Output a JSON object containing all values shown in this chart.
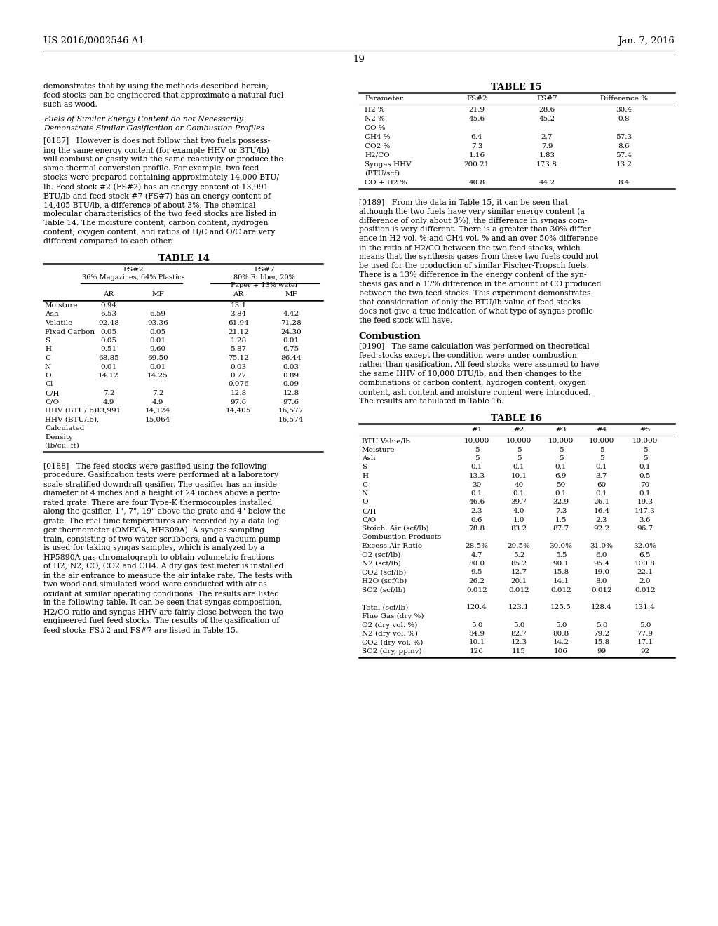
{
  "header_left": "US 2016/0002546 A1",
  "header_right": "Jan. 7, 2016",
  "page_number": "19",
  "bg": "#ffffff",
  "left_para_top": [
    "demonstrates that by using the methods described herein,",
    "feed stocks can be engineered that approximate a natural fuel",
    "such as wood."
  ],
  "italic_header1": "Fuels of Similar Energy Content do not Necessarily",
  "italic_header2": "Demonstrate Similar Gasification or Combustion Profiles",
  "para187": [
    "[0187]   However is does not follow that two fuels possess-",
    "ing the same energy content (for example HHV or BTU/lb)",
    "will combust or gasify with the same reactivity or produce the",
    "same thermal conversion profile. For example, two feed",
    "stocks were prepared containing approximately 14,000 BTU/",
    "lb. Feed stock #2 (FS#2) has an energy content of 13,991",
    "BTU/lb and feed stock #7 (FS#7) has an energy content of",
    "14,405 BTU/lb, a difference of about 3%. The chemical",
    "molecular characteristics of the two feed stocks are listed in",
    "Table 14. The moisture content, carbon content, hydrogen",
    "content, oxygen content, and ratios of H/C and O/C are very",
    "different compared to each other."
  ],
  "para188": [
    "[0188]   The feed stocks were gasified using the following",
    "procedure. Gasification tests were performed at a laboratory",
    "scale stratified downdraft gasifier. The gasifier has an inside",
    "diameter of 4 inches and a height of 24 inches above a perfo-",
    "rated grate. There are four Type-K thermocouples installed",
    "along the gasifier, 1\", 7\", 19\" above the grate and 4\" below the",
    "grate. The real-time temperatures are recorded by a data log-",
    "ger thermometer (OMEGA, HH309A). A syngas sampling",
    "train, consisting of two water scrubbers, and a vacuum pump",
    "is used for taking syngas samples, which is analyzed by a",
    "HP5890A gas chromatograph to obtain volumetric fractions",
    "of H2, N2, CO, CO2 and CH4. A dry gas test meter is installed",
    "in the air entrance to measure the air intake rate. The tests with",
    "two wood and simulated wood were conducted with air as",
    "oxidant at similar operating conditions. The results are listed",
    "in the following table. It can be seen that syngas composition,",
    "H2/CO ratio and syngas HHV are fairly close between the two",
    "engineered fuel feed stocks. The results of the gasification of",
    "feed stocks FS#2 and FS#7 are listed in Table 15."
  ],
  "para189": [
    "[0189]   From the data in Table 15, it can be seen that",
    "although the two fuels have very similar energy content (a",
    "difference of only about 3%), the difference in syngas com-",
    "position is very different. There is a greater than 30% differ-",
    "ence in H2 vol. % and CH4 vol. % and an over 50% difference",
    "in the ratio of H2/CO between the two feed stocks, which",
    "means that the synthesis gases from these two fuels could not",
    "be used for the production of similar Fischer-Tropsch fuels.",
    "There is a 13% difference in the energy content of the syn-",
    "thesis gas and a 17% difference in the amount of CO produced",
    "between the two feed stocks. This experiment demonstrates",
    "that consideration of only the BTU/lb value of feed stocks",
    "does not give a true indication of what type of syngas profile",
    "the feed stock will have."
  ],
  "para190": [
    "[0190]   The same calculation was performed on theoretical",
    "feed stocks except the condition were under combustion",
    "rather than gasification. All feed stocks were assumed to have",
    "the same HHV of 10,000 BTU/lb, and then changes to the",
    "combinations of carbon content, hydrogen content, oxygen",
    "content, ash content and moisture content were introduced.",
    "The results are tabulated in Table 16."
  ],
  "t14_rows": [
    [
      "Moisture",
      "0.94",
      "",
      "13.1",
      ""
    ],
    [
      "Ash",
      "6.53",
      "6.59",
      "3.84",
      "4.42"
    ],
    [
      "Volatile",
      "92.48",
      "93.36",
      "61.94",
      "71.28"
    ],
    [
      "Fixed Carbon",
      "0.05",
      "0.05",
      "21.12",
      "24.30"
    ],
    [
      "S",
      "0.05",
      "0.01",
      "1.28",
      "0.01"
    ],
    [
      "H",
      "9.51",
      "9.60",
      "5.87",
      "6.75"
    ],
    [
      "C",
      "68.85",
      "69.50",
      "75.12",
      "86.44"
    ],
    [
      "N",
      "0.01",
      "0.01",
      "0.03",
      "0.03"
    ],
    [
      "O",
      "14.12",
      "14.25",
      "0.77",
      "0.89"
    ],
    [
      "Cl",
      "",
      "",
      "0.076",
      "0.09"
    ],
    [
      "C/H",
      "7.2",
      "7.2",
      "12.8",
      "12.8"
    ],
    [
      "C/O",
      "4.9",
      "4.9",
      "97.6",
      "97.6"
    ],
    [
      "HHV (BTU/lb)",
      "13,991",
      "14,124",
      "14,405",
      "16,577"
    ],
    [
      "HHV (BTU/lb),",
      "",
      "15,064",
      "",
      "16,574"
    ],
    [
      "Calculated",
      "",
      "",
      "",
      ""
    ],
    [
      "Density",
      "",
      "",
      "",
      ""
    ],
    [
      "(lb/cu. ft)",
      "",
      "",
      "",
      ""
    ]
  ],
  "t15_rows": [
    [
      "H2 %",
      "21.9",
      "28.6",
      "30.4"
    ],
    [
      "N2 %",
      "45.6",
      "45.2",
      "0.8"
    ],
    [
      "CO %",
      "",
      "",
      ""
    ],
    [
      "CH4 %",
      "6.4",
      "2.7",
      "57.3"
    ],
    [
      "CO2 %",
      "7.3",
      "7.9",
      "8.6"
    ],
    [
      "H2/CO",
      "1.16",
      "1.83",
      "57.4"
    ],
    [
      "Syngas HHV",
      "200.21",
      "173.8",
      "13.2"
    ],
    [
      "(BTU/scf)",
      "",
      "",
      ""
    ],
    [
      "CO + H2 %",
      "40.8",
      "44.2",
      "8.4"
    ]
  ],
  "t16_rows": [
    [
      "BTU Value/lb",
      "10,000",
      "10,000",
      "10,000",
      "10,000",
      "10,000"
    ],
    [
      "Moisture",
      "5",
      "5",
      "5",
      "5",
      "5"
    ],
    [
      "Ash",
      "5",
      "5",
      "5",
      "5",
      "5"
    ],
    [
      "S",
      "0.1",
      "0.1",
      "0.1",
      "0.1",
      "0.1"
    ],
    [
      "H",
      "13.3",
      "10.1",
      "6.9",
      "3.7",
      "0.5"
    ],
    [
      "C",
      "30",
      "40",
      "50",
      "60",
      "70"
    ],
    [
      "N",
      "0.1",
      "0.1",
      "0.1",
      "0.1",
      "0.1"
    ],
    [
      "O",
      "46.6",
      "39.7",
      "32.9",
      "26.1",
      "19.3"
    ],
    [
      "C/H",
      "2.3",
      "4.0",
      "7.3",
      "16.4",
      "147.3"
    ],
    [
      "C/O",
      "0.6",
      "1.0",
      "1.5",
      "2.3",
      "3.6"
    ],
    [
      "Stoich. Air (scf/lb)",
      "78.8",
      "83.2",
      "87.7",
      "92.2",
      "96.7"
    ],
    [
      "Combustion Products",
      "",
      "",
      "",
      "",
      ""
    ],
    [
      "Excess Air Ratio",
      "28.5%",
      "29.5%",
      "30.0%",
      "31.0%",
      "32.0%"
    ],
    [
      "O2 (scf/lb)",
      "4.7",
      "5.2",
      "5.5",
      "6.0",
      "6.5"
    ],
    [
      "N2 (scf/lb)",
      "80.0",
      "85.2",
      "90.1",
      "95.4",
      "100.8"
    ],
    [
      "CO2 (scf/lb)",
      "9.5",
      "12.7",
      "15.8",
      "19.0",
      "22.1"
    ],
    [
      "H2O (scf/lb)",
      "26.2",
      "20.1",
      "14.1",
      "8.0",
      "2.0"
    ],
    [
      "SO2 (scf/lb)",
      "0.012",
      "0.012",
      "0.012",
      "0.012",
      "0.012"
    ],
    [
      "",
      "",
      "",
      "",
      "",
      ""
    ],
    [
      "Total (scf/lb)",
      "120.4",
      "123.1",
      "125.5",
      "128.4",
      "131.4"
    ],
    [
      "Flue Gas (dry %)",
      "",
      "",
      "",
      "",
      ""
    ],
    [
      "O2 (dry vol. %)",
      "5.0",
      "5.0",
      "5.0",
      "5.0",
      "5.0"
    ],
    [
      "N2 (dry vol. %)",
      "84.9",
      "82.7",
      "80.8",
      "79.2",
      "77.9"
    ],
    [
      "CO2 (dry vol. %)",
      "10.1",
      "12.3",
      "14.2",
      "15.8",
      "17.1"
    ],
    [
      "SO2 (dry, ppmv)",
      "126",
      "115",
      "106",
      "99",
      "92"
    ]
  ]
}
